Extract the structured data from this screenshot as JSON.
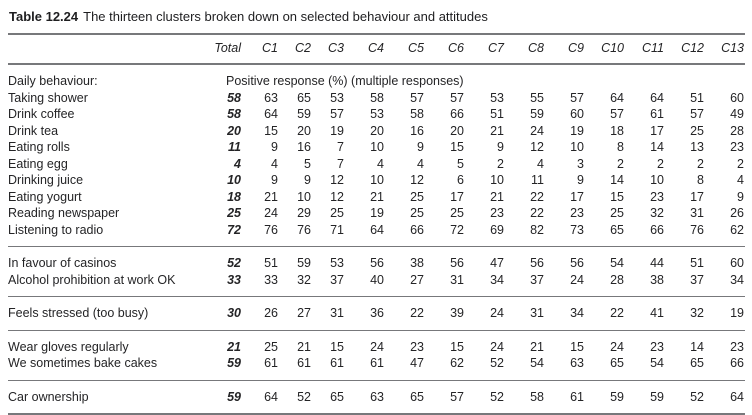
{
  "title": {
    "label": "Table 12.24",
    "text": "The thirteen clusters broken down on selected behaviour and attitudes"
  },
  "table": {
    "columns": [
      "Total",
      "C1",
      "C2",
      "C3",
      "C4",
      "C5",
      "C6",
      "C7",
      "C8",
      "C9",
      "C10",
      "C11",
      "C12",
      "C13"
    ],
    "sections": [
      {
        "name": "daily-behaviour",
        "rows": [
          {
            "label": "Daily behaviour:",
            "note": "Positive response (%) (multiple responses)"
          },
          {
            "label": "Taking shower",
            "values": [
              58,
              63,
              65,
              53,
              58,
              57,
              57,
              53,
              55,
              57,
              64,
              64,
              51,
              60
            ]
          },
          {
            "label": "Drink coffee",
            "values": [
              58,
              64,
              59,
              57,
              53,
              58,
              66,
              51,
              59,
              60,
              57,
              61,
              57,
              49
            ]
          },
          {
            "label": "Drink tea",
            "values": [
              20,
              15,
              20,
              19,
              20,
              16,
              20,
              21,
              24,
              19,
              18,
              17,
              25,
              28
            ]
          },
          {
            "label": "Eating rolls",
            "values": [
              11,
              9,
              16,
              7,
              10,
              9,
              15,
              9,
              12,
              10,
              8,
              14,
              13,
              23
            ]
          },
          {
            "label": "Eating egg",
            "values": [
              4,
              4,
              5,
              7,
              4,
              4,
              5,
              2,
              4,
              3,
              2,
              2,
              2,
              2
            ]
          },
          {
            "label": "Drinking juice",
            "values": [
              10,
              9,
              9,
              12,
              10,
              12,
              6,
              10,
              11,
              9,
              14,
              10,
              8,
              4
            ]
          },
          {
            "label": "Eating yogurt",
            "values": [
              18,
              21,
              10,
              12,
              21,
              25,
              17,
              21,
              22,
              17,
              15,
              23,
              17,
              9
            ]
          },
          {
            "label": "Reading newspaper",
            "values": [
              25,
              24,
              29,
              25,
              19,
              25,
              25,
              23,
              22,
              23,
              25,
              32,
              31,
              26
            ]
          },
          {
            "label": "Listening to radio",
            "values": [
              72,
              76,
              76,
              71,
              64,
              66,
              72,
              69,
              82,
              73,
              65,
              66,
              76,
              62
            ]
          }
        ]
      },
      {
        "name": "casinos-alcohol",
        "rows": [
          {
            "label": "In favour of casinos",
            "values": [
              52,
              51,
              59,
              53,
              56,
              38,
              56,
              47,
              56,
              56,
              54,
              44,
              51,
              60
            ]
          },
          {
            "label": "Alcohol prohibition at work OK",
            "values": [
              33,
              33,
              32,
              37,
              40,
              27,
              31,
              34,
              37,
              24,
              28,
              38,
              37,
              34
            ]
          }
        ]
      },
      {
        "name": "stress",
        "rows": [
          {
            "label": "Feels stressed (too busy)",
            "values": [
              30,
              26,
              27,
              31,
              36,
              22,
              39,
              24,
              31,
              34,
              22,
              41,
              32,
              19
            ]
          }
        ]
      },
      {
        "name": "household-habits",
        "rows": [
          {
            "label": "Wear gloves regularly",
            "values": [
              21,
              25,
              21,
              15,
              24,
              23,
              15,
              24,
              21,
              15,
              24,
              23,
              14,
              23
            ]
          },
          {
            "label": "We sometimes bake cakes",
            "values": [
              59,
              61,
              61,
              61,
              61,
              47,
              62,
              52,
              54,
              63,
              65,
              54,
              65,
              66
            ]
          }
        ]
      },
      {
        "name": "car-ownership",
        "rows": [
          {
            "label": "Car ownership",
            "values": [
              59,
              64,
              52,
              65,
              63,
              65,
              57,
              52,
              58,
              61,
              59,
              59,
              52,
              64
            ]
          }
        ]
      }
    ]
  }
}
